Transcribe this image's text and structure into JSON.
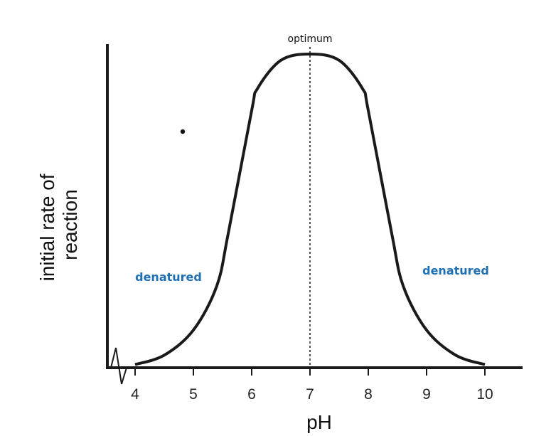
{
  "colors": {
    "curve": "#1a1a1a",
    "axis": "#1a1a1a",
    "region_label": "#1f6fb5"
  },
  "chart_data": {
    "type": "line",
    "title": "",
    "xlabel": "pH",
    "ylabel": "initial rate of reaction",
    "ylabel_lines": [
      "initial rate of",
      "reaction"
    ],
    "xlim": [
      4,
      10
    ],
    "ylim": [
      0,
      1
    ],
    "x_ticks": [
      4,
      5,
      6,
      7,
      8,
      9,
      10
    ],
    "x_tick_labels": [
      "4",
      "5",
      "6",
      "7",
      "8",
      "9",
      "10"
    ],
    "y_ticks_shown": false,
    "axis_break": "x-axis near origin",
    "grid": false,
    "series": [
      {
        "x": [
          4.0,
          4.5,
          5.0,
          5.4,
          5.6,
          6.0,
          6.1,
          6.5,
          7.0,
          7.5,
          7.9,
          8.0,
          8.4,
          8.6,
          9.0,
          9.5,
          10.0
        ],
        "y": [
          0.01,
          0.04,
          0.12,
          0.26,
          0.43,
          0.82,
          0.89,
          0.98,
          1.0,
          0.98,
          0.89,
          0.82,
          0.43,
          0.26,
          0.12,
          0.04,
          0.01
        ]
      }
    ],
    "annotations": [
      {
        "text": "optimum",
        "x": 7,
        "style": "dotted vertical line at peak"
      },
      {
        "text": "denatured",
        "side": "left"
      },
      {
        "text": "denatured",
        "side": "right"
      }
    ]
  }
}
